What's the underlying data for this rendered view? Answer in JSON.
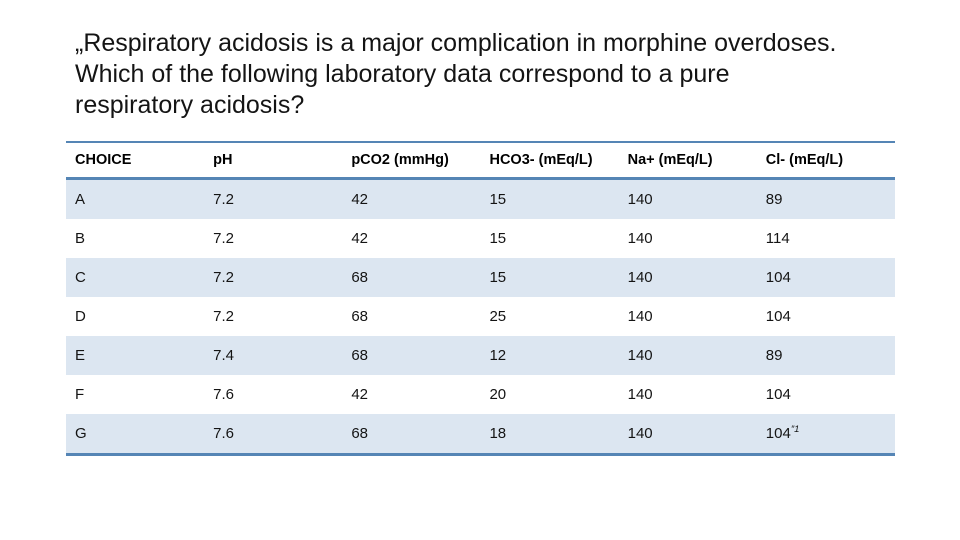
{
  "slide": {
    "title_lines": [
      "„Respiratory acidosis is a major complication in morphine overdoses.",
      "Which of the following laboratory data correspond to a pure",
      "respiratory acidosis?"
    ]
  },
  "table": {
    "headers": [
      "CHOICE",
      "pH",
      "pCO2 (mmHg)",
      "HCO3- (mEq/L)",
      "Na+ (mEq/L)",
      "Cl- (mEq/L)"
    ],
    "rows": [
      {
        "choice": "A",
        "ph": "7.2",
        "pco2": "42",
        "hco3": "15",
        "na": "140",
        "cl": "89"
      },
      {
        "choice": "B",
        "ph": "7.2",
        "pco2": "42",
        "hco3": "15",
        "na": "140",
        "cl": "114"
      },
      {
        "choice": "C",
        "ph": "7.2",
        "pco2": "68",
        "hco3": "15",
        "na": "140",
        "cl": "104"
      },
      {
        "choice": "D",
        "ph": "7.2",
        "pco2": "68",
        "hco3": "25",
        "na": "140",
        "cl": "104"
      },
      {
        "choice": "E",
        "ph": "7.4",
        "pco2": "68",
        "hco3": "12",
        "na": "140",
        "cl": "89"
      },
      {
        "choice": "F",
        "ph": "7.6",
        "pco2": "42",
        "hco3": "20",
        "na": "140",
        "cl": "104"
      },
      {
        "choice": "G",
        "ph": "7.6",
        "pco2": "68",
        "hco3": "18",
        "na": "140",
        "cl": "104",
        "cl_sup": "″1"
      }
    ]
  },
  "colors": {
    "accent_border": "#5585B5",
    "band_fill": "#DCE6F1",
    "text": "#141414"
  }
}
